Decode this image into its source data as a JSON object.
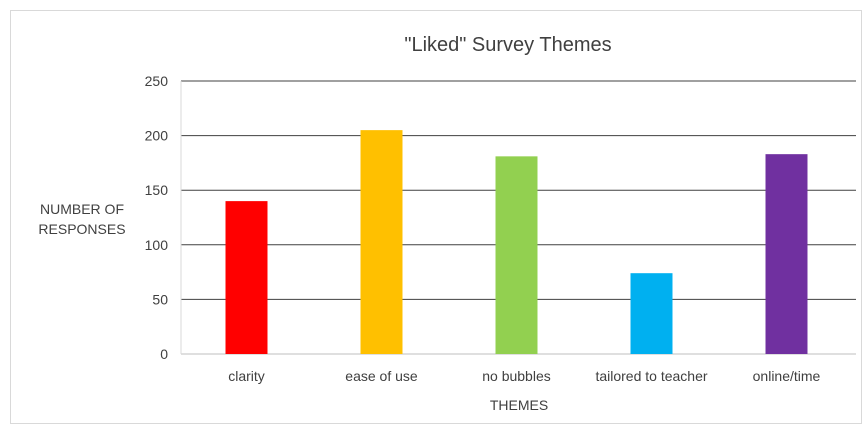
{
  "chart_data": {
    "type": "bar",
    "title": "\"Liked\" Survey Themes",
    "xlabel": "THEMES",
    "ylabel_lines": [
      "NUMBER OF",
      "RESPONSES"
    ],
    "categories": [
      "clarity",
      "ease of use",
      "no bubbles",
      "tailored to teacher",
      "online/time"
    ],
    "values": [
      140,
      205,
      181,
      74,
      183
    ],
    "colors": [
      "#ff0000",
      "#ffc000",
      "#92d050",
      "#00b0f0",
      "#7030a0"
    ],
    "ylim": [
      0,
      250
    ],
    "yticks": [
      0,
      50,
      100,
      150,
      200,
      250
    ],
    "grid": true,
    "legend": "none"
  }
}
